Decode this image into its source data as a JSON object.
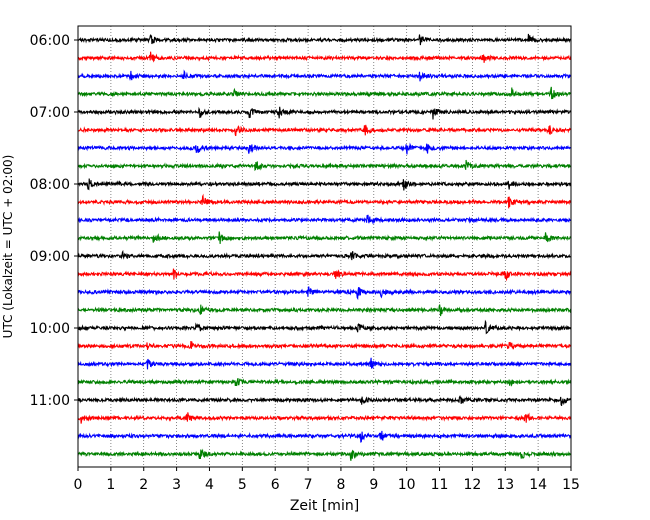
{
  "chart_data": {
    "type": "line",
    "title": "",
    "xlabel": "Zeit  [min]",
    "ylabel": "UTC (Lokalzeit = UTC + 02:00)",
    "xlim": [
      0,
      15
    ],
    "x_ticks": [
      0,
      1,
      2,
      3,
      4,
      5,
      6,
      7,
      8,
      9,
      10,
      11,
      12,
      13,
      14,
      15
    ],
    "y_tick_labels": [
      "06:00",
      "07:00",
      "08:00",
      "09:00",
      "10:00",
      "11:00"
    ],
    "vertical_grid": "dotted",
    "row_colors": [
      "#000000",
      "#ff0000",
      "#0000ff",
      "#008000"
    ],
    "rows": [
      {
        "start": "06:00",
        "color": "#000000",
        "events": [
          2.2,
          10.4,
          13.7
        ]
      },
      {
        "start": "06:15",
        "color": "#ff0000",
        "events": [
          2.2,
          12.3
        ]
      },
      {
        "start": "06:30",
        "color": "#0000ff",
        "events": [
          1.6,
          3.2,
          10.4
        ]
      },
      {
        "start": "06:45",
        "color": "#008000",
        "events": [
          4.7,
          13.2,
          14.4
        ]
      },
      {
        "start": "07:00",
        "color": "#000000",
        "events": [
          3.7,
          5.2,
          6.1,
          10.8
        ]
      },
      {
        "start": "07:15",
        "color": "#ff0000",
        "events": [
          4.8,
          8.7,
          14.3
        ]
      },
      {
        "start": "07:30",
        "color": "#0000ff",
        "events": [
          3.6,
          5.2,
          10.0,
          10.6
        ]
      },
      {
        "start": "07:45",
        "color": "#008000",
        "events": [
          5.4,
          11.8
        ]
      },
      {
        "start": "08:00",
        "color": "#000000",
        "events": [
          0.3,
          9.9,
          13.1
        ]
      },
      {
        "start": "08:15",
        "color": "#ff0000",
        "events": [
          3.8,
          13.1
        ]
      },
      {
        "start": "08:30",
        "color": "#0000ff",
        "events": [
          8.8
        ]
      },
      {
        "start": "08:45",
        "color": "#008000",
        "events": [
          2.3,
          4.3,
          14.2
        ]
      },
      {
        "start": "09:00",
        "color": "#000000",
        "events": [
          1.3,
          8.3
        ]
      },
      {
        "start": "09:15",
        "color": "#ff0000",
        "events": [
          2.9,
          7.8,
          13.0
        ]
      },
      {
        "start": "09:30",
        "color": "#0000ff",
        "events": [
          7.0,
          8.5,
          9.2
        ]
      },
      {
        "start": "09:45",
        "color": "#008000",
        "events": [
          3.7,
          11.0
        ]
      },
      {
        "start": "10:00",
        "color": "#000000",
        "events": [
          3.6,
          8.5,
          12.4
        ]
      },
      {
        "start": "10:15",
        "color": "#ff0000",
        "events": [
          2.1,
          3.4,
          13.1
        ]
      },
      {
        "start": "10:30",
        "color": "#0000ff",
        "events": [
          2.1,
          8.9
        ]
      },
      {
        "start": "10:45",
        "color": "#008000",
        "events": [
          4.8,
          13.1
        ]
      },
      {
        "start": "11:00",
        "color": "#000000",
        "events": [
          8.6,
          11.6,
          14.7
        ]
      },
      {
        "start": "11:15",
        "color": "#ff0000",
        "events": [
          0.1,
          3.3,
          13.6
        ]
      },
      {
        "start": "11:30",
        "color": "#0000ff",
        "events": [
          8.6,
          9.2
        ]
      },
      {
        "start": "11:45",
        "color": "#008000",
        "events": [
          3.7,
          8.3,
          13.5
        ]
      }
    ]
  }
}
